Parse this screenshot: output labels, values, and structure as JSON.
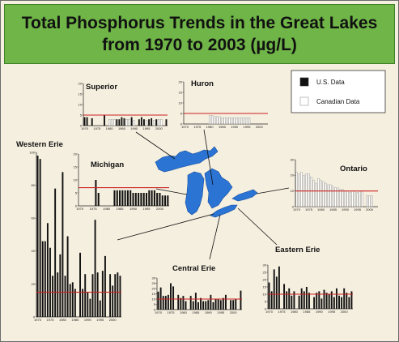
{
  "page": {
    "title": "Total Phosphorus Trends in the Great Lakes from 1970 to 2003 (µg/L)"
  },
  "legend": {
    "items": [
      {
        "label": "U.S. Data",
        "color": "#111111"
      },
      {
        "label": "Canadian Data",
        "color": "#ffffff"
      }
    ]
  },
  "colors": {
    "lake": "#2b74d4",
    "lake_edge": "#164f9e",
    "target": "#cc2222",
    "us_bar": "#111111",
    "ca_bar": "#ffffff"
  },
  "chart_data": [
    {
      "type": "bar",
      "name": "Superior",
      "title": "Superior",
      "ylim": [
        0,
        20
      ],
      "yticks": [
        0,
        5,
        10,
        15,
        20
      ],
      "xticks": [
        1970,
        1975,
        1980,
        1985,
        1990,
        1995,
        2000
      ],
      "target": 5,
      "series": [
        {
          "name": "U.S. Data",
          "x": [
            1970,
            1971,
            1973,
            1978,
            1983,
            1984,
            1985,
            1986,
            1987,
            1989,
            1992,
            1993,
            1994,
            1996,
            1997,
            1999,
            2003
          ],
          "values": [
            4,
            4,
            3.5,
            5,
            3,
            3,
            4,
            3.5,
            3,
            4,
            3,
            4,
            3,
            3,
            3.5,
            3,
            3
          ]
        },
        {
          "name": "Canadian Data",
          "x": [
            1980,
            1981,
            1982,
            1987,
            1988,
            1990,
            1995,
            1998,
            2000,
            2001
          ],
          "values": [
            3,
            3,
            3,
            3,
            3,
            2.5,
            2.5,
            2.5,
            3,
            3
          ]
        }
      ]
    },
    {
      "type": "bar",
      "name": "Huron",
      "title": "Huron",
      "ylim": [
        0,
        20
      ],
      "yticks": [
        0,
        5,
        10,
        15,
        20
      ],
      "xticks": [
        1970,
        1975,
        1980,
        1985,
        1990,
        1995,
        2000
      ],
      "target": 5,
      "series": [
        {
          "name": "U.S. Data",
          "x": [],
          "values": []
        },
        {
          "name": "Canadian Data",
          "x": [
            1980,
            1981,
            1982,
            1983,
            1984,
            1985,
            1986,
            1987,
            1988,
            1989,
            1990,
            1991,
            1992,
            1993,
            1994,
            1995,
            1996
          ],
          "values": [
            4,
            4,
            3.5,
            3.5,
            3.5,
            3,
            3,
            3,
            3,
            3,
            3,
            3,
            3,
            3,
            3,
            3,
            3
          ]
        }
      ]
    },
    {
      "type": "bar",
      "name": "Michigan",
      "title": "Michigan",
      "ylim": [
        0,
        20
      ],
      "yticks": [
        0,
        5,
        10,
        15,
        20
      ],
      "xticks": [
        1970,
        1975,
        1980,
        1985,
        1990,
        1995,
        2000
      ],
      "target": 7,
      "series": [
        {
          "name": "U.S. Data",
          "x": [
            1976,
            1977,
            1983,
            1984,
            1985,
            1986,
            1987,
            1988,
            1989,
            1990,
            1991,
            1992,
            1993,
            1994,
            1995,
            1996,
            1997,
            1998,
            1999,
            2000,
            2001,
            2002,
            2003
          ],
          "values": [
            10,
            5,
            6,
            6,
            6,
            6,
            6,
            6,
            6,
            5,
            5,
            5,
            5,
            5,
            5,
            6,
            6,
            6,
            5,
            5,
            4,
            4,
            4
          ]
        },
        {
          "name": "Canadian Data",
          "x": [],
          "values": []
        }
      ]
    },
    {
      "type": "bar",
      "name": "Western Erie",
      "title": "Western Erie",
      "ylim": [
        0,
        100
      ],
      "yticks": [
        0,
        20,
        40,
        60,
        80,
        100
      ],
      "xticks": [
        1970,
        1975,
        1980,
        1985,
        1990,
        1995,
        2000
      ],
      "target": 15,
      "series": [
        {
          "name": "U.S. Data",
          "x": [
            1970,
            1971,
            1972,
            1973,
            1974,
            1975,
            1976,
            1977,
            1978,
            1979,
            1980,
            1981,
            1982,
            1983,
            1984,
            1985,
            1987,
            1988,
            1989,
            1990,
            1991,
            1992,
            1993,
            1994,
            1995,
            1996,
            1997,
            1999,
            2000,
            2001,
            2002,
            2003
          ],
          "values": [
            98,
            96,
            46,
            46,
            57,
            42,
            25,
            78,
            27,
            38,
            88,
            25,
            49,
            20,
            21,
            17,
            39,
            17,
            26,
            15,
            11,
            26,
            59,
            27,
            10,
            28,
            37,
            26,
            19,
            26,
            27,
            25
          ]
        },
        {
          "name": "Canadian Data",
          "x": [],
          "values": []
        }
      ]
    },
    {
      "type": "bar",
      "name": "Ontario",
      "title": "Ontario",
      "ylim": [
        0,
        30
      ],
      "yticks": [
        0,
        10,
        20,
        30
      ],
      "xticks": [
        1970,
        1975,
        1980,
        1985,
        1990,
        1995,
        2000
      ],
      "target": 10,
      "series": [
        {
          "name": "U.S. Data",
          "x": [],
          "values": []
        },
        {
          "name": "Canadian Data",
          "x": [
            1970,
            1971,
            1972,
            1973,
            1974,
            1975,
            1976,
            1977,
            1978,
            1979,
            1980,
            1981,
            1982,
            1983,
            1984,
            1985,
            1986,
            1987,
            1988,
            1989,
            1990,
            1991,
            1992,
            1993,
            1994,
            1995,
            1996,
            1997,
            1999,
            2000,
            2001
          ],
          "values": [
            22,
            21,
            22,
            20,
            21,
            21,
            19,
            17,
            15,
            18,
            17,
            16,
            15,
            14,
            14,
            13,
            12,
            12,
            11,
            11,
            10,
            10,
            9,
            10,
            10,
            9,
            10,
            10,
            7,
            7,
            7
          ]
        }
      ]
    },
    {
      "type": "bar",
      "name": "Central Erie",
      "title": "Central Erie",
      "ylim": [
        0,
        30
      ],
      "yticks": [
        0,
        5,
        10,
        15,
        20,
        25,
        30
      ],
      "xticks": [
        1970,
        1975,
        1980,
        1985,
        1990,
        1995,
        2000
      ],
      "target": 10,
      "series": [
        {
          "name": "U.S. Data",
          "x": [
            1970,
            1971,
            1972,
            1973,
            1974,
            1975,
            1976,
            1978,
            1979,
            1980,
            1981,
            1983,
            1984,
            1985,
            1986,
            1987,
            1988,
            1989,
            1990,
            1991,
            1992,
            1993,
            1994,
            1995,
            1996,
            1997,
            1999,
            2000,
            2001,
            2003
          ],
          "values": [
            17,
            21,
            13,
            13,
            14,
            25,
            22,
            14,
            11,
            13,
            8,
            13,
            8,
            16,
            7,
            11,
            8,
            8,
            9,
            14,
            7,
            10,
            10,
            9,
            11,
            14,
            9,
            9,
            10,
            18
          ]
        },
        {
          "name": "Canadian Data",
          "x": [],
          "values": []
        }
      ]
    },
    {
      "type": "bar",
      "name": "Eastern Erie",
      "title": "Eastern Erie",
      "ylim": [
        0,
        30
      ],
      "yticks": [
        0,
        5,
        10,
        15,
        20,
        25,
        30
      ],
      "xticks": [
        1970,
        1975,
        1980,
        1985,
        1990,
        1995,
        2000
      ],
      "target": 10,
      "series": [
        {
          "name": "U.S. Data",
          "x": [
            1970,
            1971,
            1972,
            1973,
            1974,
            1976,
            1977,
            1978,
            1979,
            1980,
            1982,
            1983,
            1984,
            1985,
            1986,
            1988,
            1989,
            1990,
            1991,
            1992,
            1993,
            1994,
            1995,
            1996,
            1997,
            1998,
            1999,
            2000,
            2001,
            2002,
            2003
          ],
          "values": [
            18,
            12,
            27,
            22,
            29,
            17,
            12,
            14,
            9,
            12,
            9,
            14,
            12,
            15,
            11,
            8,
            11,
            12,
            7,
            13,
            11,
            10,
            12,
            8,
            14,
            9,
            8,
            14,
            11,
            8,
            12
          ]
        },
        {
          "name": "Canadian Data",
          "x": [],
          "values": []
        }
      ]
    }
  ]
}
